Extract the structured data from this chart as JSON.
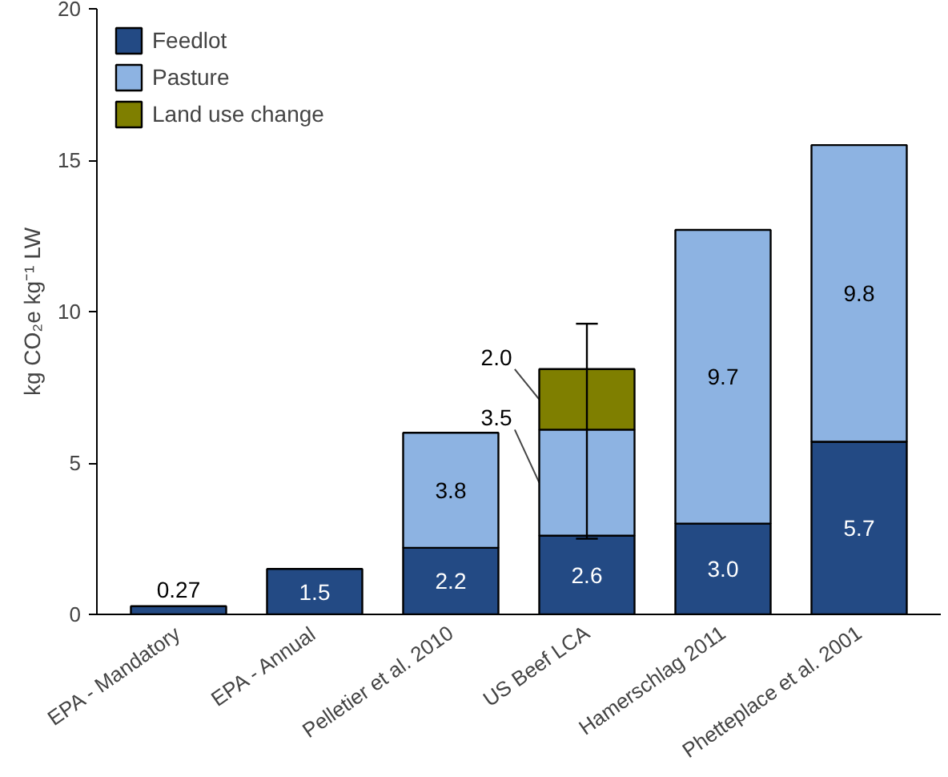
{
  "chart_data": {
    "type": "bar",
    "stacked": true,
    "ylabel": "kg CO₂e kg⁻¹ LW",
    "categories": [
      "EPA - Mandatory",
      "EPA - Annual",
      "Pelletier et al. 2010",
      "US Beef LCA",
      "Hamerschlag 2011",
      "Phetteplace et al. 2001"
    ],
    "series": [
      {
        "name": "Feedlot",
        "color": "#234a84",
        "values": [
          0.27,
          1.5,
          2.2,
          2.6,
          3.0,
          5.7
        ],
        "value_labels": [
          "0.27",
          "1.5",
          "2.2",
          "2.6",
          "3.0",
          "5.7"
        ]
      },
      {
        "name": "Pasture",
        "color": "#8db3e2",
        "values": [
          null,
          null,
          3.8,
          3.5,
          9.7,
          9.8
        ],
        "value_labels": [
          null,
          null,
          "3.8",
          "3.5",
          "9.7",
          "9.8"
        ]
      },
      {
        "name": "Land use change",
        "color": "#7f7f00",
        "values": [
          null,
          null,
          null,
          2.0,
          null,
          null
        ],
        "value_labels": [
          null,
          null,
          null,
          "2.0",
          null,
          null
        ],
        "errors": [
          null,
          null,
          null,
          [
            2.5,
            9.6
          ],
          null,
          null
        ]
      }
    ],
    "ylim": [
      0,
      20
    ],
    "yticks": [
      0,
      5,
      10,
      15,
      20
    ],
    "grid": false,
    "legend": "top left"
  }
}
